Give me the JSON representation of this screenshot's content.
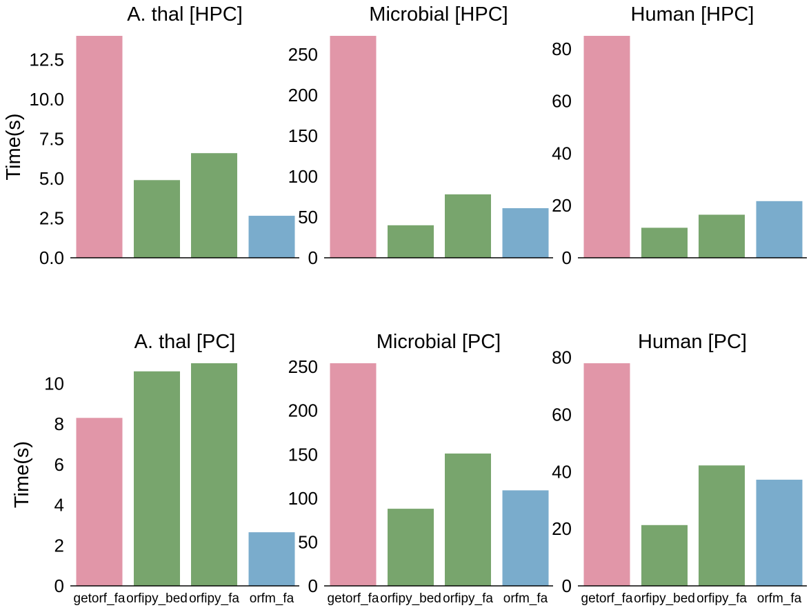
{
  "chart_data": [
    {
      "type": "bar",
      "title": "A. thal [HPC]",
      "categories": [
        "getorf_fa",
        "orfipy_bed",
        "orfipy_fa",
        "orfm_fa"
      ],
      "values": [
        14.0,
        4.9,
        6.6,
        2.65
      ],
      "ylabel": "Time(s)",
      "ylim": [
        0,
        14.0
      ],
      "yticks": [
        "0.0",
        "2.5",
        "5.0",
        "7.5",
        "10.0",
        "12.5"
      ],
      "show_xticklabels": false
    },
    {
      "type": "bar",
      "title": "Microbial [HPC]",
      "categories": [
        "getorf_fa",
        "orfipy_bed",
        "orfipy_fa",
        "orfm_fa"
      ],
      "values": [
        273,
        40,
        78,
        61
      ],
      "ylabel": "",
      "ylim": [
        0,
        273
      ],
      "yticks": [
        "0",
        "50",
        "100",
        "150",
        "200",
        "250"
      ],
      "show_xticklabels": false
    },
    {
      "type": "bar",
      "title": "Human [HPC]",
      "categories": [
        "getorf_fa",
        "orfipy_bed",
        "orfipy_fa",
        "orfm_fa"
      ],
      "values": [
        85,
        11.5,
        16.5,
        21.7
      ],
      "ylabel": "",
      "ylim": [
        0,
        85
      ],
      "yticks": [
        "0",
        "20",
        "40",
        "60",
        "80"
      ],
      "show_xticklabels": false
    },
    {
      "type": "bar",
      "title": "A. thal [PC]",
      "categories": [
        "getorf_fa",
        "orfipy_bed",
        "orfipy_fa",
        "orfm_fa"
      ],
      "values": [
        8.3,
        10.6,
        11.0,
        2.65
      ],
      "ylabel": "Time(s)",
      "ylim": [
        0,
        11.0
      ],
      "yticks": [
        "0",
        "2",
        "4",
        "6",
        "8",
        "10"
      ],
      "show_xticklabels": true
    },
    {
      "type": "bar",
      "title": "Microbial [PC]",
      "categories": [
        "getorf_fa",
        "orfipy_bed",
        "orfipy_fa",
        "orfm_fa"
      ],
      "values": [
        254,
        88,
        151,
        109
      ],
      "ylabel": "",
      "ylim": [
        0,
        254
      ],
      "yticks": [
        "0",
        "50",
        "100",
        "150",
        "200",
        "250"
      ],
      "show_xticklabels": true
    },
    {
      "type": "bar",
      "title": "Human [PC]",
      "categories": [
        "getorf_fa",
        "orfipy_bed",
        "orfipy_fa",
        "orfm_fa"
      ],
      "values": [
        78,
        21.3,
        42.2,
        37.2
      ],
      "ylabel": "",
      "ylim": [
        0,
        78
      ],
      "yticks": [
        "0",
        "20",
        "40",
        "60",
        "80"
      ],
      "show_xticklabels": true
    }
  ],
  "colors": {
    "getorf_fa": "#e196a8",
    "orfipy_bed": "#78a56d",
    "orfipy_fa": "#78a56d",
    "orfm_fa": "#7aaccc",
    "axis": "#000000"
  },
  "grid": false,
  "legend": "none"
}
